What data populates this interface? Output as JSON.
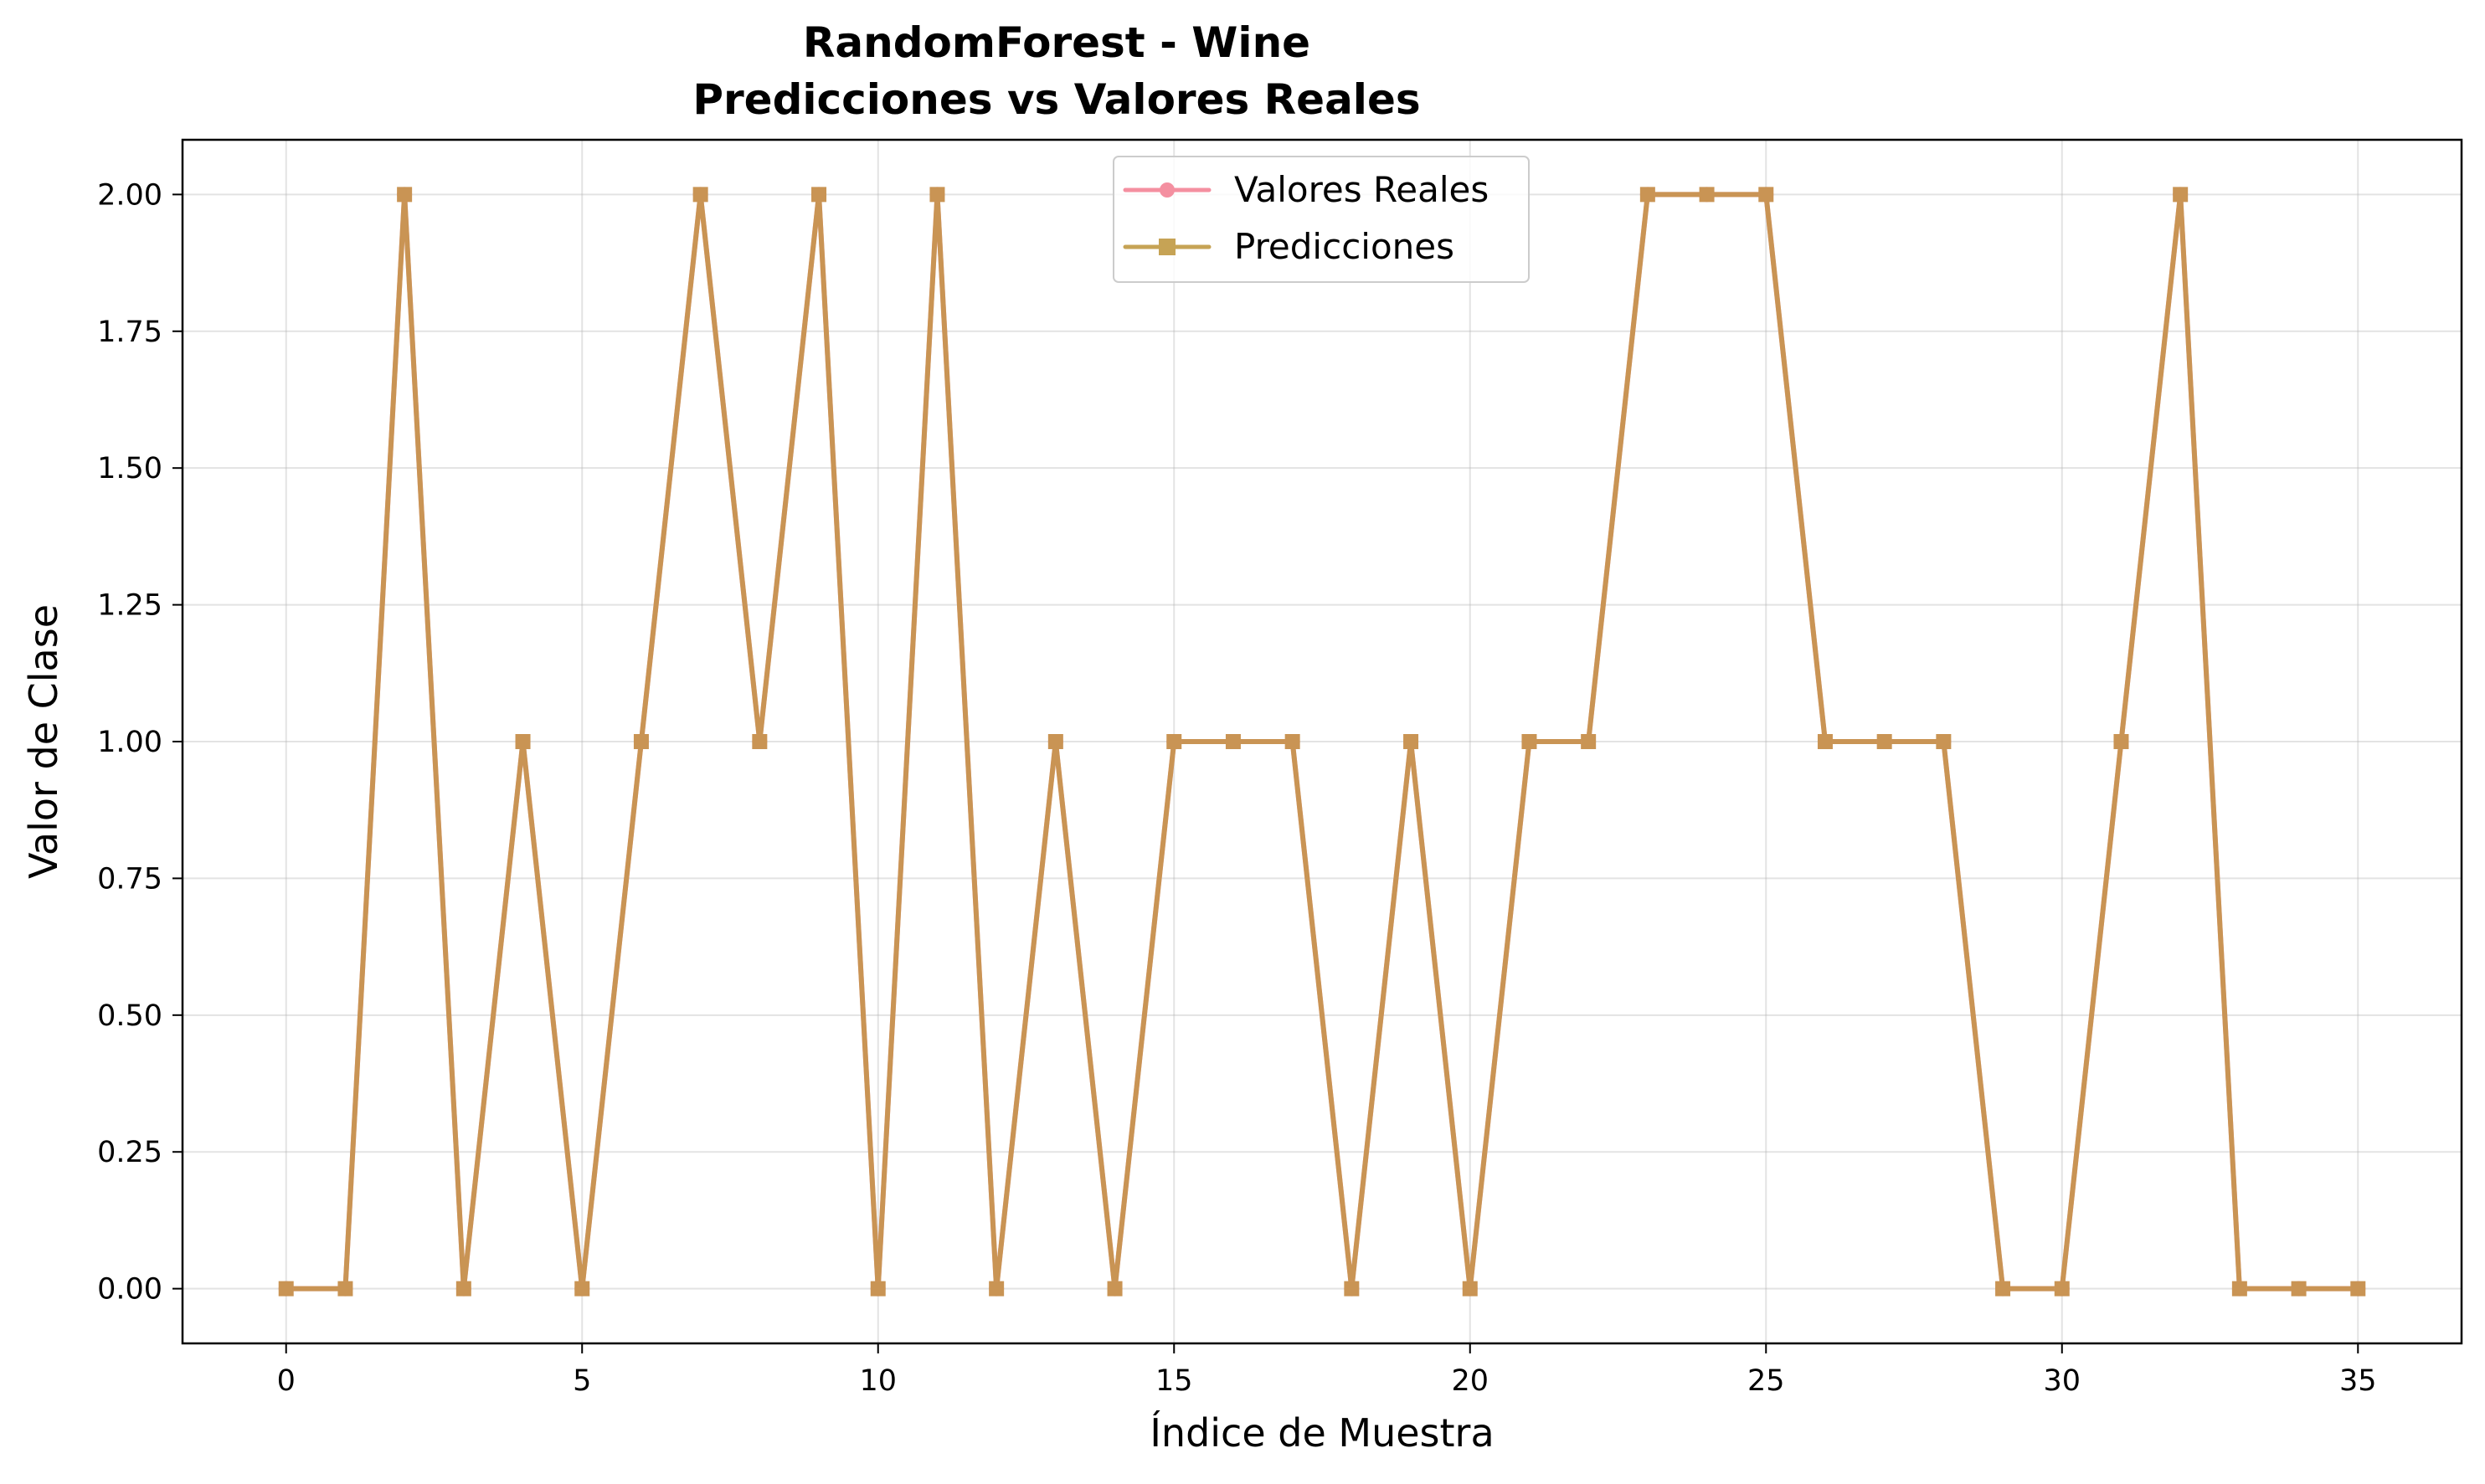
{
  "chart_data": {
    "type": "line",
    "title": "RandomForest - Wine",
    "subtitle": "Predicciones vs Valores Reales",
    "xlabel": "Índice de Muestra",
    "ylabel": "Valor de Clase",
    "xlim": [
      -1.75,
      36.75
    ],
    "ylim": [
      -0.1,
      2.1
    ],
    "xticks": [
      0,
      5,
      10,
      15,
      20,
      25,
      30,
      35
    ],
    "xtick_labels": [
      "0",
      "5",
      "10",
      "15",
      "20",
      "25",
      "30",
      "35"
    ],
    "yticks": [
      0,
      0.25,
      0.5,
      0.75,
      1.0,
      1.25,
      1.5,
      1.75,
      2.0
    ],
    "ytick_labels": [
      "0.00",
      "0.25",
      "0.50",
      "0.75",
      "1.00",
      "1.25",
      "1.50",
      "1.75",
      "2.00"
    ],
    "grid": true,
    "legend_position": "top-center",
    "x": [
      0,
      1,
      2,
      3,
      4,
      5,
      6,
      7,
      8,
      9,
      10,
      11,
      12,
      13,
      14,
      15,
      16,
      17,
      18,
      19,
      20,
      21,
      22,
      23,
      24,
      25,
      26,
      27,
      28,
      29,
      30,
      31,
      32,
      33,
      34,
      35
    ],
    "series": [
      {
        "name": "Valores Reales",
        "marker": "circle",
        "color": "#f48fa0",
        "values": [
          0,
          0,
          2,
          0,
          1,
          0,
          1,
          2,
          1,
          2,
          0,
          2,
          0,
          1,
          0,
          1,
          1,
          1,
          0,
          1,
          0,
          1,
          1,
          2,
          2,
          2,
          1,
          1,
          1,
          0,
          0,
          1,
          2,
          0,
          0,
          0
        ]
      },
      {
        "name": "Predicciones",
        "marker": "square",
        "color": "#c6a355",
        "values": [
          0,
          0,
          2,
          0,
          1,
          0,
          1,
          2,
          1,
          2,
          0,
          2,
          0,
          1,
          0,
          1,
          1,
          1,
          0,
          1,
          0,
          1,
          1,
          2,
          2,
          2,
          1,
          1,
          1,
          0,
          0,
          1,
          2,
          0,
          0,
          0
        ]
      }
    ],
    "overlap_color": "#c99454"
  }
}
